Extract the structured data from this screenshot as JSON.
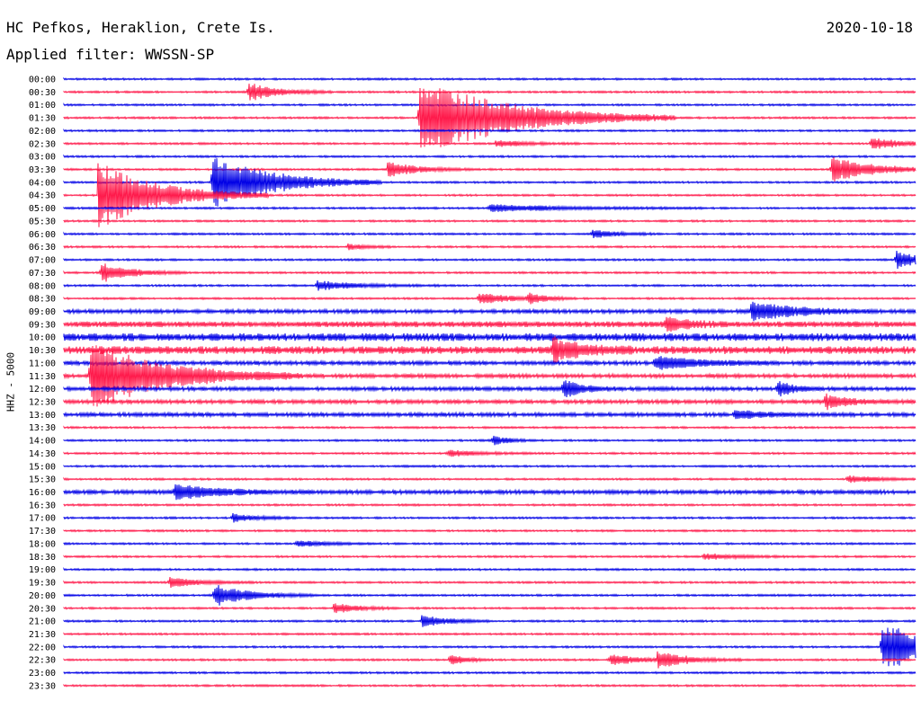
{
  "header": {
    "station": "HC Pefkos, Heraklion, Crete Is.",
    "date": "2020-10-18",
    "filter": "Applied filter: WWSSN-SP",
    "channel": "HHZ - 5000"
  },
  "colors": {
    "trace_a": "#0000e6",
    "trace_b": "#ff1a4b",
    "text": "#000000"
  },
  "chart_data": {
    "type": "line",
    "title": "HC Pefkos, Heraklion, Crete Is.",
    "ylabel": "HHZ - 5000",
    "line_labels": [
      "00:00",
      "00:30",
      "01:00",
      "01:30",
      "02:00",
      "02:30",
      "03:00",
      "03:30",
      "04:00",
      "04:30",
      "05:00",
      "05:30",
      "06:00",
      "06:30",
      "07:00",
      "07:30",
      "08:00",
      "08:30",
      "09:00",
      "09:30",
      "10:00",
      "10:30",
      "11:00",
      "11:30",
      "12:00",
      "12:30",
      "13:00",
      "13:30",
      "14:00",
      "14:30",
      "15:00",
      "15:30",
      "16:00",
      "16:30",
      "17:00",
      "17:30",
      "18:00",
      "18:30",
      "19:00",
      "19:30",
      "20:00",
      "20:30",
      "21:00",
      "21:30",
      "22:00",
      "22:30",
      "23:00",
      "23:30"
    ],
    "x_range_minutes": [
      0,
      30
    ],
    "noise_level": [
      1,
      1,
      1,
      1,
      1,
      1,
      1,
      1,
      1,
      1,
      1,
      1,
      1,
      1,
      1,
      1,
      1,
      1,
      2,
      3,
      4,
      4,
      2,
      2,
      2,
      2,
      2,
      1,
      1,
      1,
      1,
      1,
      2,
      1,
      1,
      1,
      1,
      1,
      1,
      1,
      1,
      1,
      1,
      1,
      1,
      1,
      1,
      1
    ],
    "events": [
      {
        "line": 1,
        "t": 6.5,
        "amp": 10,
        "dur": 1.0
      },
      {
        "line": 3,
        "t": 12.5,
        "amp": 45,
        "dur": 3.0
      },
      {
        "line": 5,
        "t": 15.2,
        "amp": 4,
        "dur": 1.0
      },
      {
        "line": 5,
        "t": 28.4,
        "amp": 7,
        "dur": 1.0
      },
      {
        "line": 7,
        "t": 11.4,
        "amp": 9,
        "dur": 1.0
      },
      {
        "line": 7,
        "t": 27.0,
        "amp": 14,
        "dur": 1.5
      },
      {
        "line": 8,
        "t": 5.2,
        "amp": 32,
        "dur": 2.0
      },
      {
        "line": 9,
        "t": 1.2,
        "amp": 38,
        "dur": 2.0
      },
      {
        "line": 10,
        "t": 15.0,
        "amp": 4,
        "dur": 2.5
      },
      {
        "line": 12,
        "t": 18.6,
        "amp": 5,
        "dur": 0.8
      },
      {
        "line": 13,
        "t": 10.0,
        "amp": 4,
        "dur": 0.5
      },
      {
        "line": 14,
        "t": 29.3,
        "amp": 10,
        "dur": 0.8
      },
      {
        "line": 15,
        "t": 1.3,
        "amp": 11,
        "dur": 1.0
      },
      {
        "line": 16,
        "t": 8.9,
        "amp": 5,
        "dur": 1.5
      },
      {
        "line": 17,
        "t": 14.6,
        "amp": 7,
        "dur": 1.0
      },
      {
        "line": 17,
        "t": 16.3,
        "amp": 6,
        "dur": 0.6
      },
      {
        "line": 18,
        "t": 24.2,
        "amp": 11,
        "dur": 1.5
      },
      {
        "line": 19,
        "t": 21.2,
        "amp": 7,
        "dur": 0.8
      },
      {
        "line": 21,
        "t": 17.2,
        "amp": 12,
        "dur": 1.0
      },
      {
        "line": 22,
        "t": 20.8,
        "amp": 8,
        "dur": 1.5
      },
      {
        "line": 23,
        "t": 0.9,
        "amp": 38,
        "dur": 2.5
      },
      {
        "line": 24,
        "t": 17.6,
        "amp": 10,
        "dur": 0.6
      },
      {
        "line": 24,
        "t": 25.1,
        "amp": 10,
        "dur": 0.5
      },
      {
        "line": 25,
        "t": 26.8,
        "amp": 8,
        "dur": 0.8
      },
      {
        "line": 26,
        "t": 23.6,
        "amp": 5,
        "dur": 1.0
      },
      {
        "line": 28,
        "t": 15.1,
        "amp": 6,
        "dur": 0.5
      },
      {
        "line": 29,
        "t": 13.5,
        "amp": 4,
        "dur": 1.0
      },
      {
        "line": 31,
        "t": 27.6,
        "amp": 4,
        "dur": 1.0
      },
      {
        "line": 32,
        "t": 3.9,
        "amp": 8,
        "dur": 1.5
      },
      {
        "line": 34,
        "t": 5.9,
        "amp": 5,
        "dur": 0.8
      },
      {
        "line": 36,
        "t": 8.2,
        "amp": 4,
        "dur": 1.0
      },
      {
        "line": 37,
        "t": 22.5,
        "amp": 4,
        "dur": 1.0
      },
      {
        "line": 39,
        "t": 3.7,
        "amp": 6,
        "dur": 1.0
      },
      {
        "line": 40,
        "t": 5.3,
        "amp": 12,
        "dur": 1.2
      },
      {
        "line": 41,
        "t": 9.5,
        "amp": 6,
        "dur": 0.8
      },
      {
        "line": 42,
        "t": 12.6,
        "amp": 8,
        "dur": 0.8
      },
      {
        "line": 44,
        "t": 28.8,
        "amp": 30,
        "dur": 1.5
      },
      {
        "line": 45,
        "t": 13.6,
        "amp": 7,
        "dur": 0.5
      },
      {
        "line": 45,
        "t": 19.2,
        "amp": 7,
        "dur": 1.0
      },
      {
        "line": 45,
        "t": 20.9,
        "amp": 9,
        "dur": 1.0
      }
    ]
  }
}
